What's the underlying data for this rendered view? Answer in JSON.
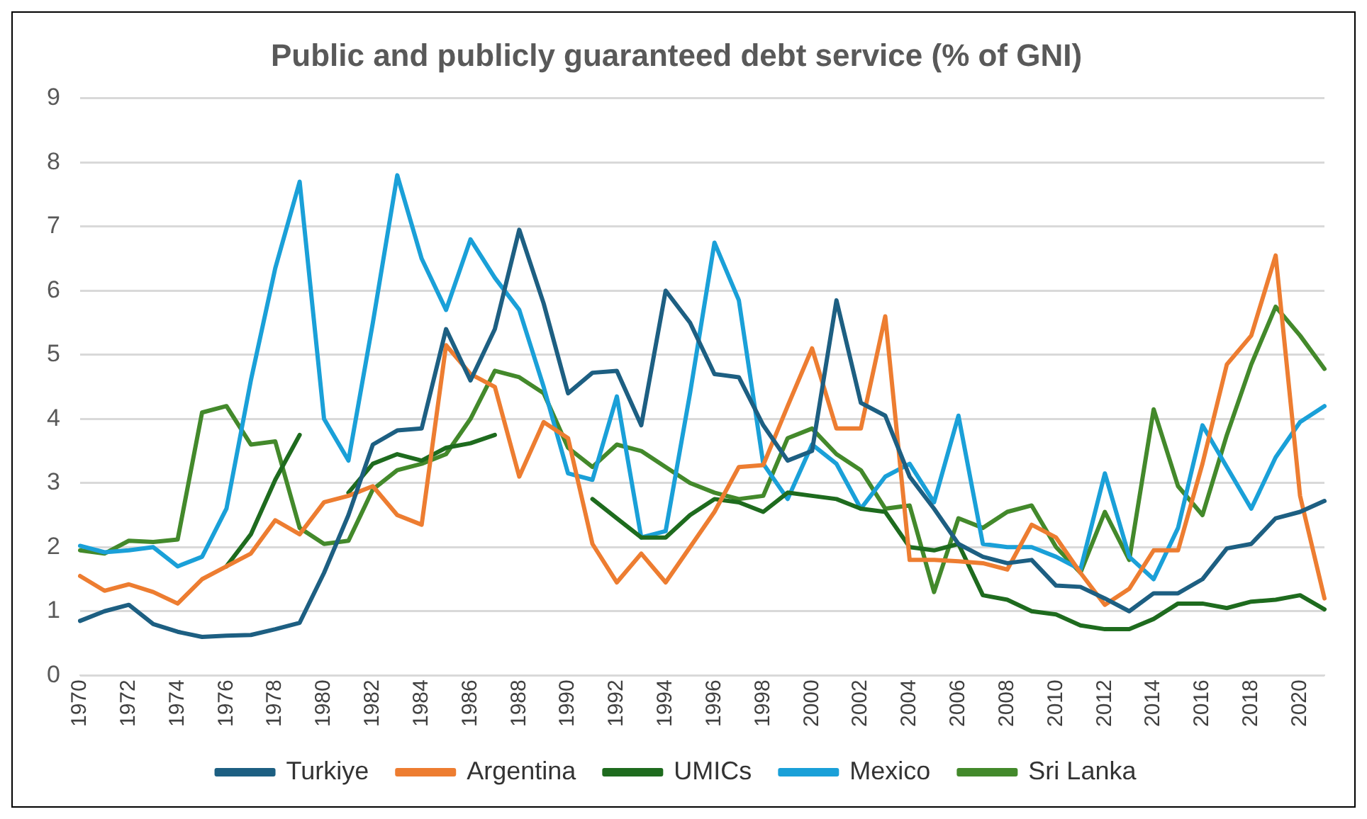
{
  "chart_data": {
    "type": "line",
    "title": "Public and publicly guaranteed debt service (% of GNI)",
    "categories": [
      "1970",
      null,
      "1972",
      null,
      "1974",
      null,
      "1976",
      null,
      "1978",
      null,
      "1980",
      null,
      "1982",
      null,
      "1984",
      null,
      "1986",
      null,
      "1988",
      null,
      "1990",
      null,
      "1992",
      null,
      "1994",
      null,
      "1996",
      null,
      "1998",
      null,
      "2000",
      null,
      "2002",
      null,
      "2004",
      null,
      "2006",
      null,
      "2008",
      null,
      "2010",
      null,
      "2012",
      null,
      "2014",
      null,
      "2016",
      null,
      "2018",
      null,
      "2020",
      null
    ],
    "series": [
      {
        "name": "Turkiye",
        "color": "#1d5f82",
        "values": [
          0.85,
          1.0,
          1.1,
          0.8,
          0.68,
          0.6,
          0.62,
          0.63,
          0.72,
          0.82,
          1.6,
          2.5,
          3.6,
          3.82,
          3.85,
          5.4,
          4.6,
          5.4,
          6.95,
          5.8,
          4.4,
          4.72,
          4.75,
          3.9,
          6.0,
          5.5,
          4.7,
          4.65,
          3.9,
          3.35,
          3.5,
          5.85,
          4.25,
          4.05,
          3.1,
          2.6,
          2.05,
          1.85,
          1.75,
          1.8,
          1.4,
          1.38,
          1.2,
          1.0,
          1.28,
          1.28,
          1.5,
          1.98,
          2.05,
          2.45,
          2.55,
          2.72
        ]
      },
      {
        "name": "Argentina",
        "color": "#ed7d31",
        "values": [
          1.55,
          1.32,
          1.42,
          1.3,
          1.12,
          1.5,
          1.7,
          1.9,
          2.42,
          2.2,
          2.7,
          2.8,
          2.95,
          2.5,
          2.35,
          5.15,
          4.7,
          4.5,
          3.1,
          3.95,
          3.7,
          2.05,
          1.45,
          1.9,
          1.45,
          2.0,
          2.55,
          3.25,
          3.28,
          4.2,
          5.1,
          3.85,
          3.85,
          5.6,
          1.8,
          1.8,
          1.78,
          1.75,
          1.65,
          2.35,
          2.15,
          1.6,
          1.1,
          1.35,
          1.95,
          1.95,
          3.3,
          4.85,
          5.3,
          6.55,
          2.8,
          1.2
        ]
      },
      {
        "name": "UMICs",
        "color": "#1e6b1e",
        "values": [
          null,
          null,
          null,
          null,
          null,
          null,
          1.7,
          2.2,
          3.05,
          3.75,
          null,
          2.85,
          3.3,
          3.45,
          3.35,
          3.55,
          3.62,
          3.75,
          null,
          null,
          null,
          2.75,
          2.45,
          2.15,
          2.15,
          2.5,
          2.75,
          2.7,
          2.55,
          2.85,
          2.8,
          2.75,
          2.6,
          2.55,
          2.0,
          1.95,
          2.05,
          1.25,
          1.18,
          1.0,
          0.95,
          0.78,
          0.72,
          0.72,
          0.88,
          1.12,
          1.12,
          1.05,
          1.15,
          1.18,
          1.25,
          1.03
        ]
      },
      {
        "name": "Mexico",
        "color": "#1aa0d8",
        "values": [
          2.02,
          1.92,
          1.95,
          2.0,
          1.7,
          1.85,
          2.6,
          4.6,
          6.35,
          7.7,
          4.0,
          3.35,
          5.5,
          7.8,
          6.5,
          5.7,
          6.8,
          6.2,
          5.7,
          4.5,
          3.15,
          3.05,
          4.35,
          2.15,
          2.25,
          4.4,
          6.75,
          5.85,
          3.3,
          2.75,
          3.6,
          3.3,
          2.6,
          3.1,
          3.3,
          2.7,
          4.05,
          2.05,
          2.0,
          2.0,
          1.85,
          1.65,
          3.15,
          1.85,
          1.5,
          2.3,
          3.9,
          3.25,
          2.6,
          3.4,
          3.95,
          4.2
        ]
      },
      {
        "name": "Sri Lanka",
        "color": "#43892b",
        "values": [
          1.95,
          1.9,
          2.1,
          2.08,
          2.12,
          4.1,
          4.2,
          3.6,
          3.65,
          2.3,
          2.05,
          2.1,
          2.9,
          3.2,
          3.3,
          3.45,
          4.0,
          4.75,
          4.65,
          4.4,
          3.55,
          3.25,
          3.6,
          3.5,
          3.25,
          3.0,
          2.85,
          2.75,
          2.8,
          3.7,
          3.85,
          3.45,
          3.2,
          2.6,
          2.65,
          1.3,
          2.45,
          2.3,
          2.55,
          2.65,
          2.0,
          1.6,
          2.55,
          1.8,
          4.15,
          2.95,
          2.5,
          3.75,
          4.85,
          5.75,
          5.3,
          4.78
        ]
      }
    ],
    "ylim": [
      0,
      9
    ],
    "yticks": [
      0,
      1,
      2,
      3,
      4,
      5,
      6,
      7,
      8,
      9
    ],
    "grid": "y",
    "legend": "bottom",
    "line_style": "solid",
    "marker": "none"
  }
}
